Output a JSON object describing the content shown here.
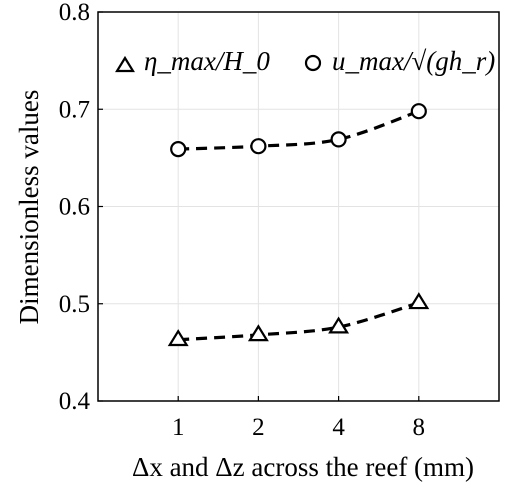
{
  "chart_data": {
    "type": "line",
    "categories": [
      "1",
      "2",
      "4",
      "8"
    ],
    "xlabel": "Δx and Δz across the reef (mm)",
    "ylabel": "Dimensionless values",
    "ylim": [
      0.4,
      0.8
    ],
    "yticks": [
      "0.4",
      "0.5",
      "0.6",
      "0.7",
      "0.8"
    ],
    "grid": true,
    "legend_position": "top",
    "series": [
      {
        "name": "η_max/H_0",
        "marker": "triangle",
        "line_style": "dashed",
        "color": "#000000",
        "values": [
          0.463,
          0.468,
          0.476,
          0.501
        ]
      },
      {
        "name": "u_max/√(gh_r)",
        "marker": "circle",
        "line_style": "dashed",
        "color": "#000000",
        "values": [
          0.659,
          0.662,
          0.669,
          0.698
        ]
      }
    ]
  }
}
